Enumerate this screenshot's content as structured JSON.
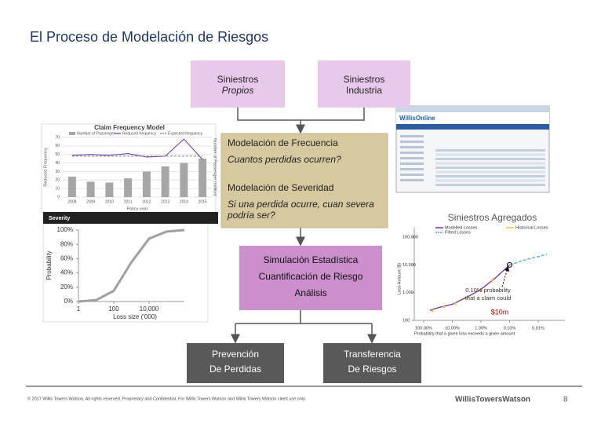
{
  "header": {
    "title": "El Proceso de Modelación de Riesgos"
  },
  "nodes": [
    {
      "lines": [
        "Siniestros",
        "Propios"
      ]
    },
    {
      "lines": [
        "Siniestros",
        "Industria"
      ]
    },
    {
      "lines": [
        "Modelación de Frecuencia",
        "Cuantos perdidas ocurren?",
        "Modelación de Severidad",
        "Si una perdida ocurre, cuan severa",
        "podría ser?"
      ]
    },
    {
      "lines": [
        "Simulación Estadística",
        "Cuantificación de Riesgo",
        "Análisis"
      ]
    },
    {
      "lines": [
        "Prevención",
        "De Perdidas"
      ]
    },
    {
      "lines": [
        "Transferencia",
        "De Riesgos"
      ]
    },
    {
      "lines": [
        "Siniestros Agregados"
      ]
    }
  ],
  "frequency_chart": {
    "title": "Claim Frequency Model",
    "y_label": "Reduced Frequency",
    "y2_label": "Number of Passenger (million)",
    "x_label": "Policy year",
    "categories": [
      "2008",
      "2009",
      "2010",
      "2011",
      "2012",
      "2013",
      "2014",
      "2015"
    ],
    "ylim": [
      0,
      70
    ],
    "yticks": [
      0,
      10,
      20,
      30,
      40,
      50,
      60,
      70
    ],
    "series": [
      {
        "name": "Number of Passenger",
        "type": "bar",
        "color": "#a6a6a6",
        "values": [
          24,
          18,
          17,
          22,
          30,
          36,
          40,
          45
        ]
      },
      {
        "name": "Reduced frequency",
        "type": "line",
        "color": "#7030a0",
        "values": [
          49,
          50,
          49,
          51,
          47,
          48,
          68,
          44
        ]
      },
      {
        "name": "Expected frequency",
        "type": "dashed",
        "color": "#7f7f7f",
        "values": [
          48,
          48,
          48,
          48,
          48,
          48,
          48,
          48
        ]
      }
    ]
  },
  "severity_chart": {
    "title": "Severity",
    "y_label": "Probability",
    "x_label": "Loss size ('000)",
    "log_x": true,
    "xlim": [
      1,
      1000000
    ],
    "xticks": [
      1,
      100,
      {
        "value": 10000,
        "label": "10,000"
      }
    ],
    "ylim": [
      0,
      100
    ],
    "yticks": [
      {
        "value": 0,
        "label": "0%"
      },
      {
        "value": 20,
        "label": "20%"
      },
      {
        "value": 40,
        "label": "40%"
      },
      {
        "value": 60,
        "label": "60%"
      },
      {
        "value": 80,
        "label": "80%"
      },
      {
        "value": 100,
        "label": "100%"
      }
    ],
    "x": [
      1,
      10,
      100,
      1000,
      10000,
      100000,
      1000000
    ],
    "values": [
      0,
      2,
      15,
      55,
      88,
      98,
      100
    ],
    "color": "#a0a0a0"
  },
  "online_screen": {
    "brand": "WillisOnline"
  },
  "aggregate_chart": {
    "y_label": "Loss Amount ($)",
    "x_label": "Probability that a given loss exceeds a given amount",
    "log_x": true,
    "log_y": true,
    "xlim": [
      100,
      0.01
    ],
    "xticks": [
      {
        "value": 100,
        "label": "100.00%"
      },
      {
        "value": 10,
        "label": "10.00%"
      },
      {
        "value": 1,
        "label": "1.00%"
      },
      {
        "value": 0.1,
        "label": "0.10%"
      },
      {
        "value": 0.01,
        "label": "0.01%"
      }
    ],
    "ylim": [
      100,
      100000
    ],
    "yticks": [
      100,
      {
        "value": 1000,
        "label": "1,000"
      },
      {
        "value": 10000,
        "label": "10,000"
      },
      {
        "value": 100000,
        "label": "100,000"
      }
    ],
    "series": [
      {
        "name": "Modelled Losses",
        "type": "line",
        "color": "#7030a0",
        "x": [
          60,
          30,
          10,
          3,
          1,
          0.3,
          0.1
        ],
        "values": [
          230,
          290,
          380,
          700,
          1300,
          3500,
          10000
        ]
      },
      {
        "name": "Historical Losses",
        "type": "dots",
        "color": "#f0c040",
        "x": [
          50,
          20,
          8,
          3,
          1,
          0.4
        ],
        "values": [
          220,
          300,
          400,
          650,
          1200,
          2800
        ]
      },
      {
        "name": "Fitted Losses",
        "type": "dashed",
        "color": "#4bacc6",
        "x": [
          0.1,
          0.03,
          0.01,
          0.005
        ],
        "values": [
          10000,
          15000,
          20000,
          24000
        ]
      }
    ],
    "annotation": [
      "0.10% probability",
      "that a claim could"
    ],
    "highlight": "$10m"
  },
  "footer": {
    "copyright": "© 2017 Willis Towers Watson. All rights reserved. Proprietary and Confidential. For Willis Towers Watson and Willis Towers Watson client use only.",
    "logo": "WillisTowersWatson",
    "page": "8"
  }
}
